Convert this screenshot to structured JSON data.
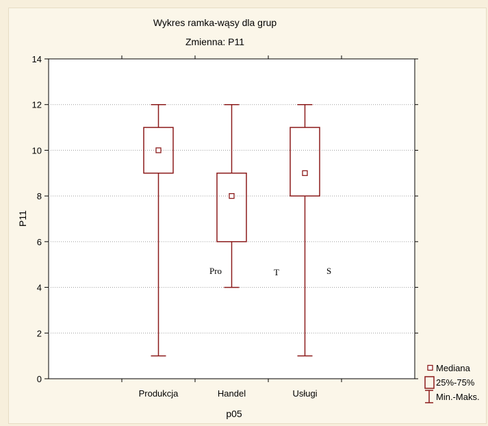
{
  "colors": {
    "series": "#8b1a1a",
    "plot_background": "#ffffff",
    "page_background": "#f7efdc",
    "grid": "#9a9a9a"
  },
  "chart_data": {
    "type": "boxplot",
    "title": "Wykres ramka-wąsy dla grup",
    "subtitle": "Zmienna:  P11",
    "xlabel": "p05",
    "ylabel": "P11",
    "ylim": [
      0,
      14
    ],
    "yticks": [
      0,
      2,
      4,
      6,
      8,
      10,
      12,
      14
    ],
    "grid": "horizontal dotted",
    "legend_position": "bottom-right, outside plot",
    "categories": [
      "Produkcja",
      "Handel",
      "Usługi"
    ],
    "boxes": [
      {
        "category": "Produkcja",
        "min": 1,
        "q1": 9,
        "median": 10,
        "q3": 11,
        "max": 12
      },
      {
        "category": "Handel",
        "min": 4,
        "q1": 6,
        "median": 8,
        "q3": 9,
        "max": 12
      },
      {
        "category": "Usługi",
        "min": 1,
        "q1": 8,
        "median": 9,
        "q3": 11,
        "max": 12
      }
    ],
    "legend": [
      {
        "symbol": "median-square",
        "label": "Mediana"
      },
      {
        "symbol": "box",
        "label": "25%-75%"
      },
      {
        "symbol": "whisker",
        "label": "Min.-Maks."
      }
    ],
    "annotations": [
      "Pro",
      "T",
      "S"
    ]
  }
}
